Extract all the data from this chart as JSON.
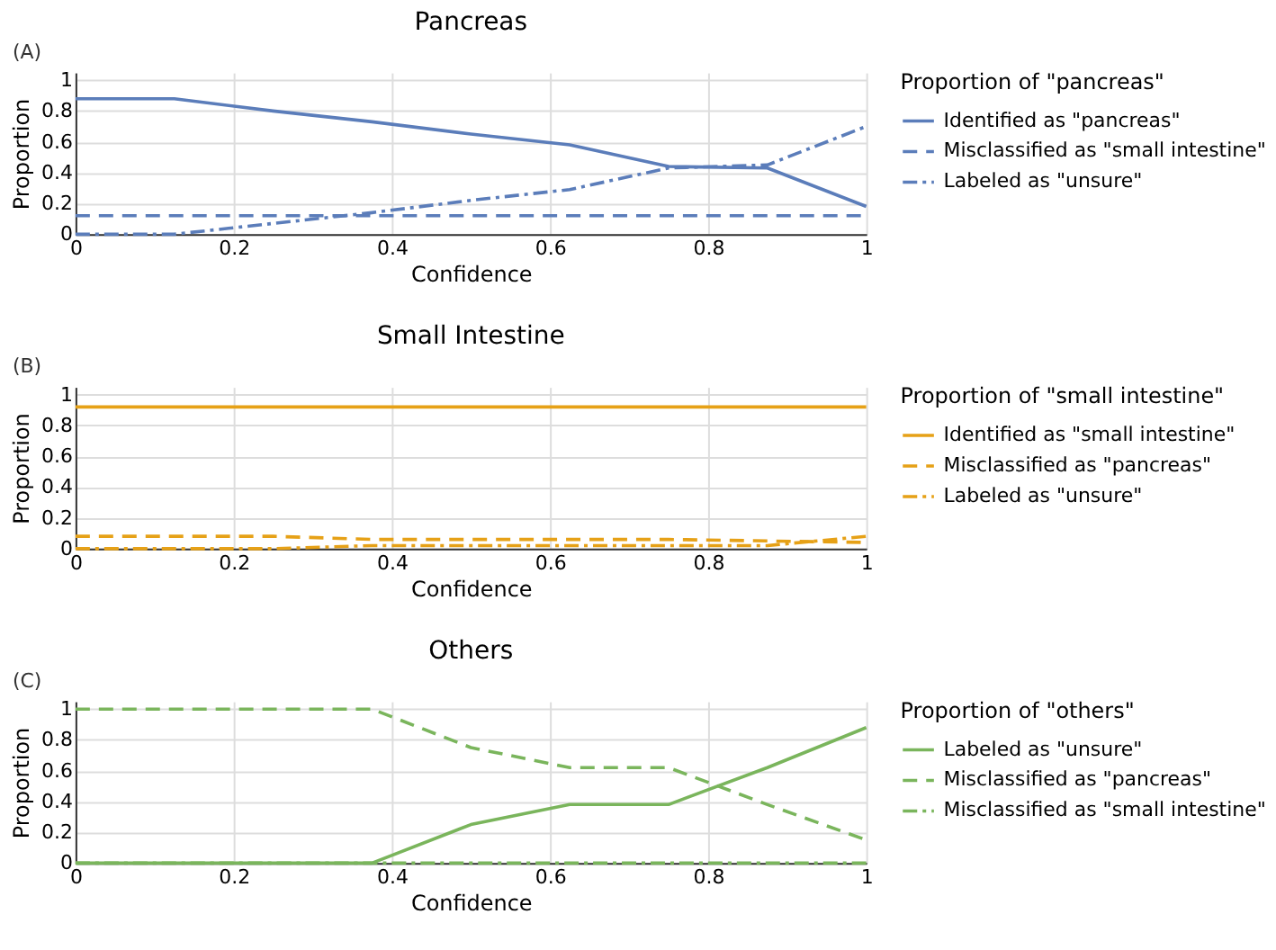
{
  "chart_data": [
    {
      "type": "line",
      "title": "Pancreas",
      "annotations": [
        "(A)"
      ],
      "xlabel": "Confidence",
      "ylabel": "Proportion",
      "legend_title": "Proportion of \"pancreas\"",
      "legend": "right",
      "grid": true,
      "xlim": [
        0,
        1
      ],
      "ylim": [
        0,
        1.05
      ],
      "xticks": [
        0,
        0.2,
        0.4,
        0.6,
        0.8,
        1
      ],
      "yticks": [
        0,
        0.2,
        0.4,
        0.6,
        0.8,
        1
      ],
      "x": [
        0,
        0.125,
        0.25,
        0.375,
        0.5,
        0.625,
        0.75,
        0.875,
        1
      ],
      "series": [
        {
          "name": "Identified as \"pancreas\"",
          "color": "#5b7dba",
          "line_style": "solid",
          "values": [
            0.88,
            0.88,
            0.8,
            0.73,
            0.65,
            0.58,
            0.44,
            0.43,
            0.18
          ]
        },
        {
          "name": "Misclassified as \"small intestine\"",
          "color": "#5b7dba",
          "line_style": "dashed",
          "values": [
            0.12,
            0.12,
            0.12,
            0.12,
            0.12,
            0.12,
            0.12,
            0.12,
            0.12
          ]
        },
        {
          "name": "Labeled as \"unsure\"",
          "color": "#5b7dba",
          "line_style": "dotted",
          "values": [
            0,
            0,
            0.07,
            0.14,
            0.22,
            0.29,
            0.43,
            0.45,
            0.7
          ]
        }
      ]
    },
    {
      "type": "line",
      "title": "Small Intestine",
      "annotations": [
        "(B)"
      ],
      "xlabel": "Confidence",
      "ylabel": "Proportion",
      "legend_title": "Proportion of \"small intestine\"",
      "legend": "right",
      "grid": true,
      "xlim": [
        0,
        1
      ],
      "ylim": [
        0,
        1.05
      ],
      "xticks": [
        0,
        0.2,
        0.4,
        0.6,
        0.8,
        1
      ],
      "yticks": [
        0,
        0.2,
        0.4,
        0.6,
        0.8,
        1
      ],
      "x": [
        0,
        0.125,
        0.25,
        0.375,
        0.5,
        0.625,
        0.75,
        0.875,
        1
      ],
      "series": [
        {
          "name": "Identified as \"small intestine\"",
          "color": "#e6a117",
          "line_style": "solid",
          "values": [
            0.92,
            0.92,
            0.92,
            0.92,
            0.92,
            0.92,
            0.92,
            0.92,
            0.92
          ]
        },
        {
          "name": "Misclassified as \"pancreas\"",
          "color": "#e6a117",
          "line_style": "dashed",
          "values": [
            0.08,
            0.08,
            0.08,
            0.06,
            0.06,
            0.06,
            0.06,
            0.05,
            0.04
          ]
        },
        {
          "name": "Labeled as \"unsure\"",
          "color": "#e6a117",
          "line_style": "dotted",
          "values": [
            0,
            0,
            0,
            0.02,
            0.02,
            0.02,
            0.02,
            0.02,
            0.08
          ]
        }
      ]
    },
    {
      "type": "line",
      "title": "Others",
      "annotations": [
        "(C)"
      ],
      "xlabel": "Confidence",
      "ylabel": "Proportion",
      "legend_title": "Proportion of \"others\"",
      "legend": "right",
      "grid": true,
      "xlim": [
        0,
        1
      ],
      "ylim": [
        0,
        1.05
      ],
      "xticks": [
        0,
        0.2,
        0.4,
        0.6,
        0.8,
        1
      ],
      "yticks": [
        0,
        0.2,
        0.4,
        0.6,
        0.8,
        1
      ],
      "x": [
        0,
        0.125,
        0.25,
        0.375,
        0.5,
        0.625,
        0.75,
        0.875,
        1
      ],
      "series": [
        {
          "name": "Labeled as \"unsure\"",
          "color": "#7ab55c",
          "line_style": "solid",
          "values": [
            0,
            0,
            0,
            0,
            0.25,
            0.38,
            0.38,
            0.62,
            0.88
          ]
        },
        {
          "name": "Misclassified as \"pancreas\"",
          "color": "#7ab55c",
          "line_style": "dashed",
          "values": [
            1,
            1,
            1,
            1,
            0.75,
            0.62,
            0.62,
            0.38,
            0.15
          ]
        },
        {
          "name": "Misclassified as \"small intestine\"",
          "color": "#7ab55c",
          "line_style": "dotted",
          "values": [
            0,
            0,
            0,
            0,
            0,
            0,
            0,
            0,
            0
          ]
        }
      ]
    }
  ]
}
